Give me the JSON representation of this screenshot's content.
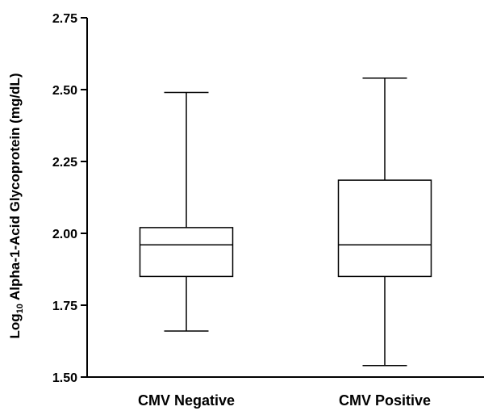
{
  "chart_data": {
    "type": "box",
    "title": "",
    "xlabel": "",
    "ylabel": {
      "prefix": "Log",
      "subscript": "10",
      "rest": " Alpha-1-Acid Glycoprotein (mg/dL)"
    },
    "ylim": [
      1.5,
      2.75
    ],
    "yticks": [
      1.5,
      1.75,
      2.0,
      2.25,
      2.5,
      2.75
    ],
    "ytick_labels": [
      "1.50",
      "1.75",
      "2.00",
      "2.25",
      "2.50",
      "2.75"
    ],
    "grid": false,
    "categories": [
      "CMV Negative",
      "CMV Positive"
    ],
    "boxes": [
      {
        "category": "CMV Negative",
        "min": 1.66,
        "q1": 1.85,
        "median": 1.96,
        "q3": 2.02,
        "max": 2.49
      },
      {
        "category": "CMV Positive",
        "min": 1.54,
        "q1": 1.85,
        "median": 1.96,
        "q3": 2.185,
        "max": 2.54
      }
    ]
  }
}
